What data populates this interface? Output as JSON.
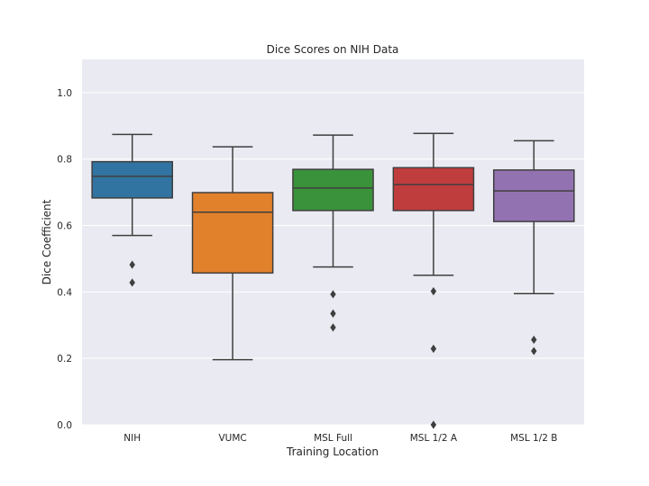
{
  "chart_data": {
    "type": "box",
    "title": "Dice Scores on NIH Data",
    "xlabel": "Training Location",
    "ylabel": "Dice Coefficient",
    "ylim": [
      0.0,
      1.1
    ],
    "yticks": [
      0.0,
      0.2,
      0.4,
      0.6,
      0.8,
      1.0
    ],
    "ytick_labels": [
      "0.0",
      "0.2",
      "0.4",
      "0.6",
      "0.8",
      "1.0"
    ],
    "grid": true,
    "background_color": "#EAEAF2",
    "categories": [
      "NIH",
      "VUMC",
      "MSL Full",
      "MSL 1/2 A",
      "MSL 1/2 B"
    ],
    "boxes": [
      {
        "category": "NIH",
        "color": "#3274A1",
        "whisker_low": 0.57,
        "q1": 0.683,
        "median": 0.748,
        "q3": 0.792,
        "whisker_high": 0.874,
        "outliers": [
          0.482,
          0.428
        ]
      },
      {
        "category": "VUMC",
        "color": "#E1812C",
        "whisker_low": 0.196,
        "q1": 0.457,
        "median": 0.64,
        "q3": 0.699,
        "whisker_high": 0.837,
        "outliers": []
      },
      {
        "category": "MSL Full",
        "color": "#3A923A",
        "whisker_low": 0.475,
        "q1": 0.645,
        "median": 0.713,
        "q3": 0.769,
        "whisker_high": 0.872,
        "outliers": [
          0.393,
          0.335,
          0.293
        ]
      },
      {
        "category": "MSL 1/2 A",
        "color": "#C03D3E",
        "whisker_low": 0.45,
        "q1": 0.645,
        "median": 0.723,
        "q3": 0.774,
        "whisker_high": 0.877,
        "outliers": [
          0.402,
          0.229,
          0.0
        ]
      },
      {
        "category": "MSL 1/2 B",
        "color": "#9372B2",
        "whisker_low": 0.395,
        "q1": 0.612,
        "median": 0.704,
        "q3": 0.767,
        "whisker_high": 0.855,
        "outliers": [
          0.256,
          0.222
        ]
      }
    ]
  }
}
